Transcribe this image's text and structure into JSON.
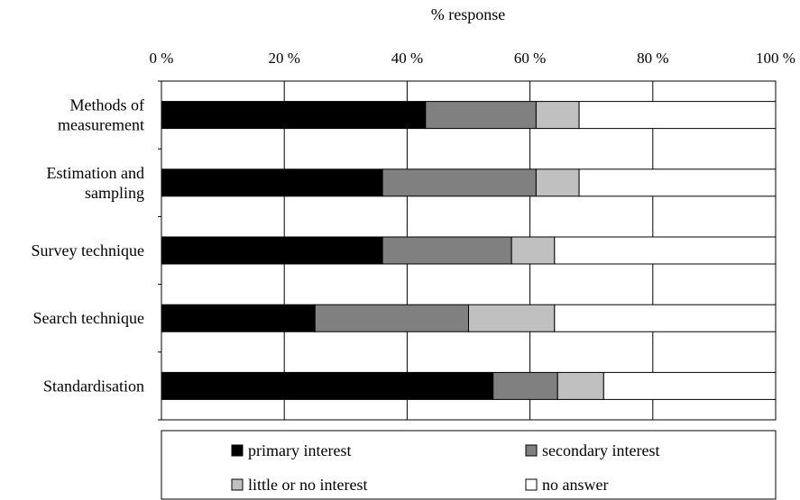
{
  "chart_data": {
    "type": "bar",
    "orientation": "horizontal",
    "stacked": true,
    "title": "",
    "xlabel": "% response",
    "xlim": [
      0,
      100
    ],
    "xticks": [
      0,
      20,
      40,
      60,
      80,
      100
    ],
    "xtick_labels": [
      "0 %",
      "20 %",
      "40 %",
      "60 %",
      "80 %",
      "100 %"
    ],
    "grid": "vertical",
    "legend_position": "bottom",
    "categories": [
      "Methods of\nmeasurement",
      "Estimation and\nsampling",
      "Survey technique",
      "Search technique",
      "Standardisation"
    ],
    "series": [
      {
        "name": "primary interest",
        "color": "#000000",
        "values": [
          43,
          36,
          36,
          25,
          54
        ]
      },
      {
        "name": "secondary interest",
        "color": "#808080",
        "values": [
          18,
          25,
          21,
          25,
          10.5
        ]
      },
      {
        "name": "little or no interest",
        "color": "#c0c0c0",
        "values": [
          7,
          7,
          7,
          14,
          7.5
        ]
      },
      {
        "name": "no answer",
        "color": "#ffffff",
        "values": [
          32,
          32,
          36,
          36,
          28
        ]
      }
    ]
  }
}
